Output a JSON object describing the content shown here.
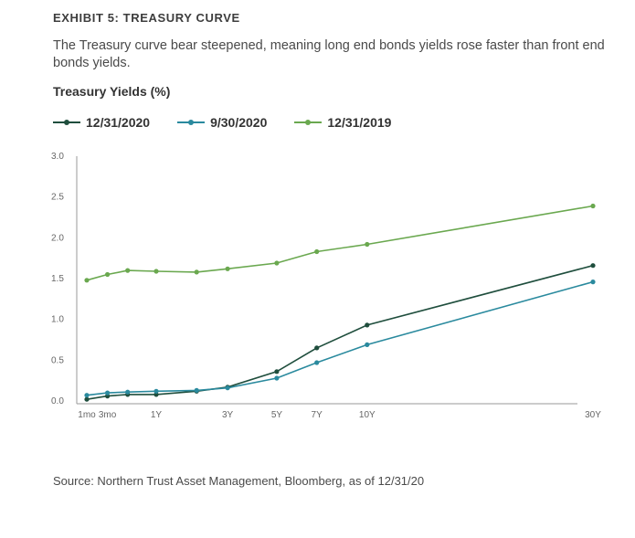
{
  "exhibit_title": "EXHIBIT 5: TREASURY CURVE",
  "subtitle": "The Treasury curve bear steepened, meaning long end bonds yields rose faster than front end bonds yields.",
  "source": "Source: Northern Trust Asset Management, Bloomberg, as of 12/31/20",
  "chart_data": {
    "type": "line",
    "title": "Treasury Yields (%)",
    "x": [
      "1mo",
      "3mo",
      "6mo",
      "1Y",
      "2Y",
      "3Y",
      "5Y",
      "7Y",
      "10Y",
      "30Y"
    ],
    "x_numeric": [
      0.0833,
      0.25,
      0.5,
      1,
      2,
      3,
      5,
      7,
      10,
      30
    ],
    "x_scale": "sqrt",
    "tick_labels": [
      {
        "label": "1mo",
        "x": 0.0833
      },
      {
        "label": "3mo",
        "x": 0.25
      },
      {
        "label": "1Y",
        "x": 1
      },
      {
        "label": "3Y",
        "x": 3
      },
      {
        "label": "5Y",
        "x": 5
      },
      {
        "label": "7Y",
        "x": 7
      },
      {
        "label": "10Y",
        "x": 10
      },
      {
        "label": "30Y",
        "x": 30
      }
    ],
    "ylim": [
      0,
      3.0
    ],
    "yticks": [
      "0.0",
      "0.5",
      "1.0",
      "1.5",
      "2.0",
      "2.5",
      "3.0"
    ],
    "grid": false,
    "legend_position": "top-left",
    "series": [
      {
        "name": "12/31/2020",
        "color": "#1f4e3d",
        "values": [
          0.02,
          0.06,
          0.08,
          0.08,
          0.12,
          0.17,
          0.36,
          0.65,
          0.93,
          1.66
        ]
      },
      {
        "name": "9/30/2020",
        "color": "#2a8a9e",
        "values": [
          0.07,
          0.1,
          0.11,
          0.12,
          0.13,
          0.16,
          0.28,
          0.47,
          0.69,
          1.46
        ]
      },
      {
        "name": "12/31/2019",
        "color": "#6aa84f",
        "values": [
          1.48,
          1.55,
          1.6,
          1.59,
          1.58,
          1.62,
          1.69,
          1.83,
          1.92,
          2.39
        ]
      }
    ]
  }
}
